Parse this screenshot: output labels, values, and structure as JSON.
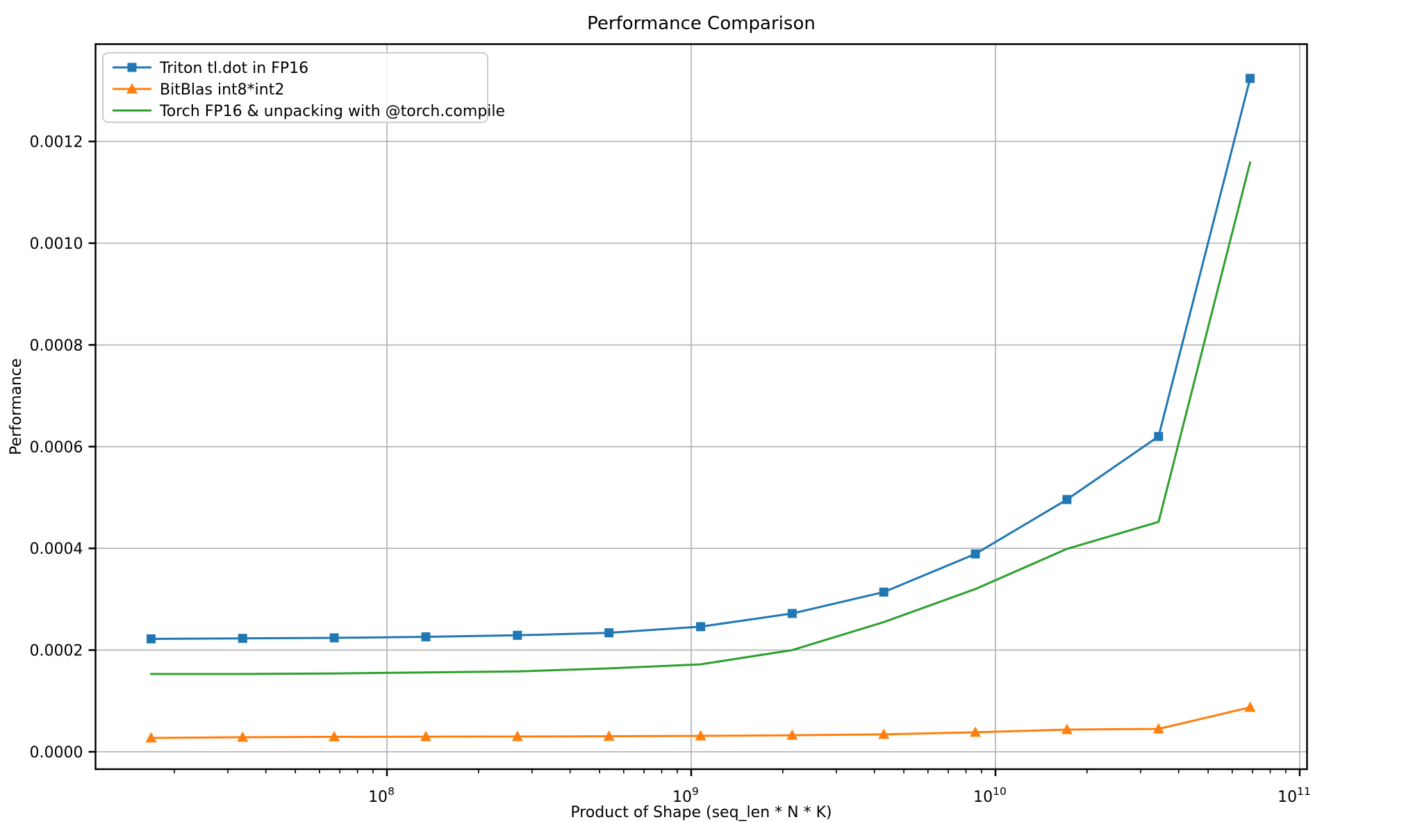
{
  "page": {
    "background": "#ffffff"
  },
  "chart_data": {
    "type": "line",
    "title": "Performance Comparison",
    "xlabel": "Product of Shape (seq_len * N * K)",
    "ylabel": "Performance",
    "x_scale": "log",
    "grid": true,
    "legend_position": "upper-left",
    "xlim": [
      11020000,
      105700000000
    ],
    "ylim": [
      -3.42e-05,
      0.0013914
    ],
    "x_major_ticks": [
      100000000,
      1000000000,
      10000000000,
      100000000000
    ],
    "x_tick_base": "10",
    "x_tick_exponents": [
      "8",
      "9",
      "10",
      "11"
    ],
    "y_ticks": [
      0.0,
      0.0002,
      0.0004,
      0.0006,
      0.0008,
      0.001,
      0.0012
    ],
    "y_tick_labels": [
      "0.0000",
      "0.0002",
      "0.0004",
      "0.0006",
      "0.0008",
      "0.0010",
      "0.0012"
    ],
    "x": [
      16777216,
      33554432,
      67108864,
      134217728,
      268435456,
      536870912,
      1073741824,
      2147483648,
      4294967296,
      8589934592,
      17179869184,
      34359738368,
      68719476736
    ],
    "series": [
      {
        "name": "Triton tl.dot in FP16",
        "color": "#1f77b4",
        "marker": "square",
        "values": [
          0.000222,
          0.000223,
          0.000224,
          0.000226,
          0.000229,
          0.000234,
          0.000246,
          0.000272,
          0.000314,
          0.000389,
          0.000496,
          0.00062,
          0.001324
        ]
      },
      {
        "name": "BitBlas int8*int2",
        "color": "#ff7f0e",
        "marker": "triangle-up",
        "values": [
          2.73e-05,
          2.87e-05,
          2.95e-05,
          2.98e-05,
          3e-05,
          3.05e-05,
          3.12e-05,
          3.25e-05,
          3.42e-05,
          3.83e-05,
          4.37e-05,
          4.51e-05,
          8.74e-05
        ]
      },
      {
        "name": "Torch FP16 & unpacking with @torch.compile",
        "color": "#2ca02c",
        "marker": "none",
        "values": [
          0.000153,
          0.000153,
          0.000154,
          0.000156,
          0.000158,
          0.000164,
          0.000172,
          0.0002,
          0.000255,
          0.00032,
          0.000399,
          0.000452,
          0.001159
        ]
      }
    ],
    "colors": {
      "grid": "#b0b0b0",
      "spine": "#000000",
      "text": "#000000",
      "legend_border": "#cccccc",
      "legend_background": "rgba(255,255,255,0.8)"
    }
  }
}
